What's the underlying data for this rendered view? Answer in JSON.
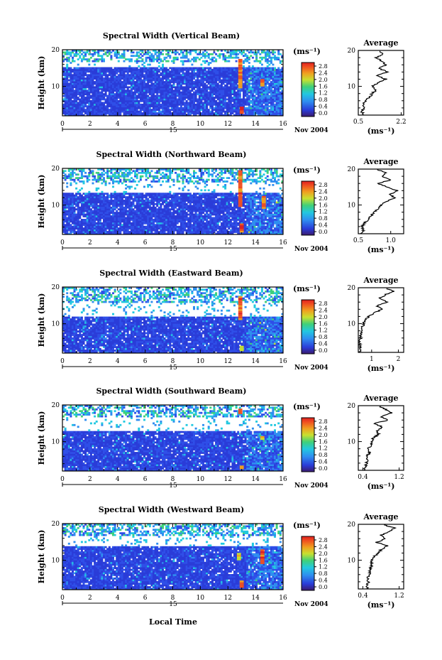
{
  "figure": {
    "x_axis_label": "Local Time",
    "day_label": "15",
    "month_year_label": "Nov 2004",
    "colorbar_unit": "(ms⁻¹)",
    "colorbar_ticks": [
      "0.0",
      "0.4",
      "0.8",
      "1.2",
      "1.6",
      "2.0",
      "2.4",
      "2.8"
    ],
    "avg_title": "Average",
    "avg_unit": "(ms⁻¹)",
    "height_label": "Height (km)"
  },
  "chart_data": [
    {
      "type": "heatmap",
      "title": "Spectral Width (Vertical Beam)",
      "xlabel": "",
      "ylabel": "Height (km)",
      "xlim": [
        0,
        16
      ],
      "ylim": [
        2,
        20
      ],
      "x_ticks": [
        "0",
        "2",
        "4",
        "6",
        "8",
        "10",
        "12",
        "14",
        "16"
      ],
      "y_ticks": [
        "10",
        "20"
      ],
      "colorbar": {
        "min": 0.0,
        "max": 2.8,
        "unit": "ms-1"
      },
      "data_gap_km": [
        15.2,
        16.6
      ],
      "high_width_regions": [
        {
          "time_h": 12.9,
          "height_km": [
            9.5,
            17.5
          ],
          "value": 2.6
        },
        {
          "time_h": 13.0,
          "height_km": [
            2.5,
            4.5
          ],
          "value": 2.8
        },
        {
          "time_h": 14.5,
          "height_km": [
            10.0,
            12.0
          ],
          "value": 2.6
        }
      ],
      "average_profile": {
        "xlabel": "(ms-1)",
        "xlim": [
          0.5,
          2.3
        ],
        "x_ticks": [
          "0.5",
          "2.2"
        ],
        "y_ticks": [
          "10",
          "20"
        ],
        "height_km": [
          2,
          3,
          4,
          5,
          6,
          7,
          8,
          9,
          10,
          11,
          12,
          13,
          14,
          15,
          16,
          17,
          18,
          19,
          20
        ],
        "values": [
          0.75,
          0.62,
          0.72,
          0.66,
          0.78,
          0.95,
          1.05,
          1.2,
          1.05,
          1.3,
          1.6,
          1.2,
          1.7,
          1.3,
          1.6,
          1.45,
          1.2,
          1.5,
          1.3
        ]
      }
    },
    {
      "type": "heatmap",
      "title": "Spectral Width (Northward Beam)",
      "xlabel": "",
      "ylabel": "Height (km)",
      "xlim": [
        0,
        16
      ],
      "ylim": [
        2,
        20
      ],
      "x_ticks": [
        "0",
        "2",
        "4",
        "6",
        "8",
        "10",
        "12",
        "14",
        "16"
      ],
      "y_ticks": [
        "10",
        "20"
      ],
      "colorbar": {
        "min": 0.0,
        "max": 2.8,
        "unit": "ms-1"
      },
      "data_gap_km": [
        13.0,
        16.2
      ],
      "high_width_regions": [
        {
          "time_h": 12.9,
          "height_km": [
            9.5,
            19.5
          ],
          "value": 2.7
        },
        {
          "time_h": 13.0,
          "height_km": [
            2.5,
            5.0
          ],
          "value": 2.8
        },
        {
          "time_h": 14.6,
          "height_km": [
            9.0,
            12.5
          ],
          "value": 2.6
        }
      ],
      "average_profile": {
        "xlabel": "(ms-1)",
        "xlim": [
          0.5,
          1.2
        ],
        "x_ticks": [
          "0.5",
          "1.0"
        ],
        "y_ticks": [
          "10",
          "20"
        ],
        "height_km": [
          2,
          3,
          4,
          5,
          6,
          7,
          8,
          9,
          10,
          11,
          12,
          13,
          14,
          15,
          16,
          17,
          18,
          19,
          20
        ],
        "values": [
          0.55,
          0.58,
          0.55,
          0.6,
          0.65,
          0.7,
          0.75,
          0.8,
          0.85,
          0.95,
          1.05,
          1.0,
          1.1,
          0.95,
          0.8,
          1.0,
          0.85,
          0.95,
          0.75
        ]
      }
    },
    {
      "type": "heatmap",
      "title": "Spectral Width (Eastward Beam)",
      "xlabel": "",
      "ylabel": "Height (km)",
      "xlim": [
        0,
        16
      ],
      "ylim": [
        2,
        20
      ],
      "x_ticks": [
        "0",
        "2",
        "4",
        "6",
        "8",
        "10",
        "12",
        "14",
        "16"
      ],
      "y_ticks": [
        "10",
        "20"
      ],
      "colorbar": {
        "min": 0.0,
        "max": 2.8,
        "unit": "ms-1"
      },
      "data_gap_km": [
        11.5,
        15.5
      ],
      "high_width_regions": [
        {
          "time_h": 12.9,
          "height_km": [
            11.0,
            17.5
          ],
          "value": 2.7
        },
        {
          "time_h": 13.0,
          "height_km": [
            2.5,
            4.0
          ],
          "value": 2.2
        }
      ],
      "average_profile": {
        "xlabel": "(ms-1)",
        "xlim": [
          0.5,
          2.2
        ],
        "x_ticks": [
          "1",
          "2"
        ],
        "y_ticks": [
          "10",
          "20"
        ],
        "height_km": [
          2,
          3,
          4,
          5,
          6,
          7,
          8,
          9,
          10,
          11,
          12,
          13,
          14,
          15,
          16,
          17,
          18,
          19,
          20
        ],
        "values": [
          0.55,
          0.55,
          0.58,
          0.55,
          0.6,
          0.6,
          0.62,
          0.65,
          0.7,
          0.75,
          0.9,
          1.1,
          1.4,
          1.2,
          1.6,
          1.3,
          1.5,
          1.8,
          1.5
        ]
      }
    },
    {
      "type": "heatmap",
      "title": "Spectral Width (Southward Beam)",
      "xlabel": "",
      "ylabel": "Height (km)",
      "xlim": [
        0,
        16
      ],
      "ylim": [
        2,
        20
      ],
      "x_ticks": [
        "0",
        "2",
        "4",
        "6",
        "8",
        "10",
        "12",
        "14",
        "16"
      ],
      "y_ticks": [
        "10",
        "20"
      ],
      "colorbar": {
        "min": 0.0,
        "max": 2.8,
        "unit": "ms-1"
      },
      "data_gap_km": [
        12.5,
        16.5
      ],
      "high_width_regions": [
        {
          "time_h": 12.9,
          "height_km": [
            17.5,
            19.0
          ],
          "value": 2.6
        },
        {
          "time_h": 13.0,
          "height_km": [
            2.5,
            3.5
          ],
          "value": 2.4
        },
        {
          "time_h": 14.5,
          "height_km": [
            10.5,
            11.5
          ],
          "value": 2.2
        }
      ],
      "average_profile": {
        "xlabel": "(ms-1)",
        "xlim": [
          0.3,
          1.3
        ],
        "x_ticks": [
          "0.4",
          "1.2"
        ],
        "y_ticks": [
          "10",
          "20"
        ],
        "height_km": [
          2,
          3,
          4,
          5,
          6,
          7,
          8,
          9,
          10,
          11,
          12,
          13,
          14,
          15,
          16,
          17,
          18,
          19,
          20
        ],
        "values": [
          0.45,
          0.45,
          0.48,
          0.5,
          0.5,
          0.55,
          0.52,
          0.58,
          0.6,
          0.62,
          0.75,
          0.7,
          0.85,
          0.65,
          0.95,
          0.8,
          1.05,
          0.9,
          0.75
        ]
      }
    },
    {
      "type": "heatmap",
      "title": "Spectral Width (Westward Beam)",
      "xlabel": "Local Time",
      "ylabel": "Height (km)",
      "xlim": [
        0,
        16
      ],
      "ylim": [
        2,
        20
      ],
      "x_ticks": [
        "0",
        "2",
        "4",
        "6",
        "8",
        "10",
        "12",
        "14",
        "16"
      ],
      "y_ticks": [
        "10",
        "20"
      ],
      "colorbar": {
        "min": 0.0,
        "max": 2.8,
        "unit": "ms-1"
      },
      "data_gap_km": [
        13.5,
        16.5
      ],
      "high_width_regions": [
        {
          "time_h": 13.0,
          "height_km": [
            2.5,
            4.5
          ],
          "value": 2.6
        },
        {
          "time_h": 14.5,
          "height_km": [
            9.0,
            13.0
          ],
          "value": 2.8
        },
        {
          "time_h": 12.8,
          "height_km": [
            10.0,
            12.0
          ],
          "value": 2.2
        }
      ],
      "average_profile": {
        "xlabel": "(ms-1)",
        "xlim": [
          0.3,
          1.3
        ],
        "x_ticks": [
          "0.4",
          "1.2"
        ],
        "y_ticks": [
          "10",
          "20"
        ],
        "height_km": [
          2,
          3,
          4,
          5,
          6,
          7,
          8,
          9,
          10,
          11,
          12,
          13,
          14,
          15,
          16,
          17,
          18,
          19,
          20
        ],
        "values": [
          0.5,
          0.5,
          0.52,
          0.5,
          0.55,
          0.55,
          0.58,
          0.6,
          0.6,
          0.65,
          0.75,
          0.8,
          0.95,
          0.7,
          0.9,
          0.8,
          1.0,
          1.1,
          0.8
        ]
      }
    }
  ]
}
